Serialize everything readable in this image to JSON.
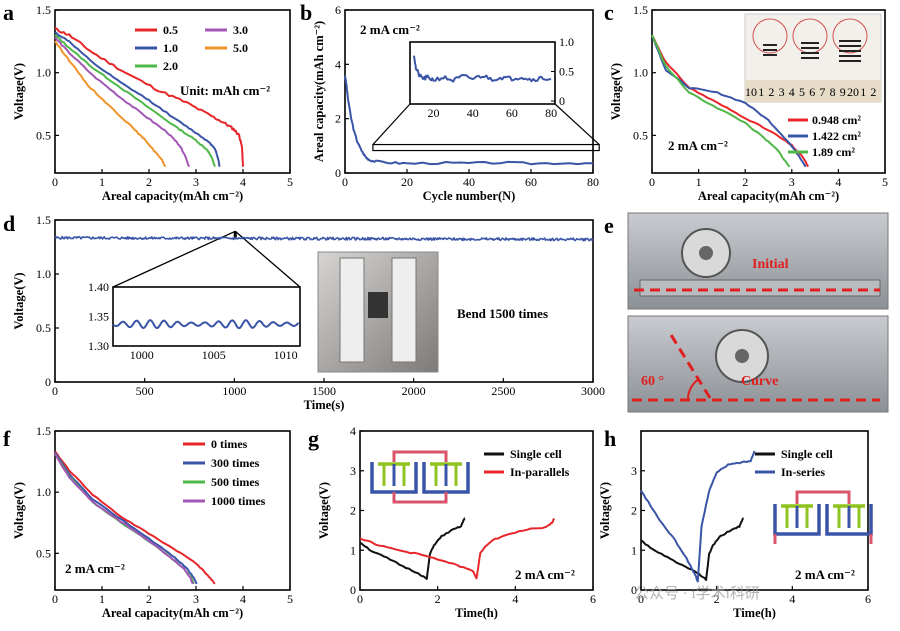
{
  "figure": {
    "panels": [
      "a",
      "b",
      "c",
      "d",
      "e",
      "f",
      "g",
      "h"
    ],
    "watermark": "公众号 · i学术i科研"
  },
  "colors": {
    "red": "#e8262a",
    "blue": "#3a55a8",
    "green": "#4db848",
    "purple": "#a256b5",
    "orange": "#f0942a",
    "black": "#111111",
    "dashed_red": "#e02020",
    "photo_bg": "#9aa0a6"
  },
  "chart_data": [
    {
      "panel": "a",
      "type": "line",
      "xlabel": "Areal capacity(mAh cm⁻²)",
      "ylabel": "Voltage(V)",
      "xlim": [
        0,
        5
      ],
      "ylim": [
        0.2,
        1.5
      ],
      "xticks": [
        0,
        1,
        2,
        3,
        4,
        5
      ],
      "yticks": [
        0.5,
        1.0,
        1.5
      ],
      "yticklabels": [
        "0.5",
        "1.0",
        "1.5"
      ],
      "legend_items": [
        "0.5",
        "1.0",
        "2.0",
        "3.0",
        "5.0"
      ],
      "annotation": "Unit: mAh cm⁻²",
      "series": [
        {
          "name": "0.5",
          "color": "red",
          "x": [
            0,
            0.3,
            0.8,
            1.5,
            2.2,
            2.8,
            3.3,
            3.6,
            3.8,
            3.92,
            3.98,
            4.0
          ],
          "y": [
            1.35,
            1.3,
            1.16,
            1.0,
            0.86,
            0.76,
            0.66,
            0.6,
            0.55,
            0.5,
            0.4,
            0.25
          ]
        },
        {
          "name": "1.0",
          "color": "blue",
          "x": [
            0,
            0.3,
            0.8,
            1.4,
            2.0,
            2.6,
            3.0,
            3.3,
            3.42,
            3.48,
            3.5
          ],
          "y": [
            1.32,
            1.25,
            1.08,
            0.92,
            0.78,
            0.62,
            0.52,
            0.44,
            0.38,
            0.3,
            0.25
          ]
        },
        {
          "name": "2.0",
          "color": "green",
          "x": [
            0,
            0.3,
            0.8,
            1.4,
            2.0,
            2.6,
            3.0,
            3.25,
            3.35,
            3.4
          ],
          "y": [
            1.3,
            1.2,
            1.04,
            0.88,
            0.72,
            0.56,
            0.46,
            0.38,
            0.31,
            0.25
          ]
        },
        {
          "name": "3.0",
          "color": "purple",
          "x": [
            0,
            0.3,
            0.8,
            1.4,
            1.9,
            2.4,
            2.65,
            2.78,
            2.85
          ],
          "y": [
            1.28,
            1.16,
            0.98,
            0.8,
            0.66,
            0.52,
            0.42,
            0.33,
            0.25
          ]
        },
        {
          "name": "5.0",
          "color": "orange",
          "x": [
            0,
            0.3,
            0.7,
            1.2,
            1.6,
            1.95,
            2.15,
            2.28,
            2.35
          ],
          "y": [
            1.25,
            1.1,
            0.9,
            0.72,
            0.58,
            0.45,
            0.36,
            0.3,
            0.25
          ]
        }
      ]
    },
    {
      "panel": "b",
      "type": "line",
      "xlabel": "Cycle number(N)",
      "ylabel": "Areal capacity(mAh cm⁻²)",
      "xlim": [
        0,
        80
      ],
      "ylim": [
        0,
        6
      ],
      "xticks": [
        0,
        20,
        40,
        60,
        80
      ],
      "yticks": [
        0,
        2,
        4,
        6
      ],
      "annotation": "2 mA cm⁻²",
      "inset": {
        "xlim": [
          8,
          82
        ],
        "ylim": [
          -0.05,
          1.0
        ],
        "xticks": [
          20,
          40,
          60,
          80
        ],
        "yticks": [
          0,
          0.5,
          1.0
        ],
        "yticklabels": [
          "0",
          "0.5",
          "1.0"
        ],
        "x": [
          10,
          11,
          13,
          15,
          17,
          20,
          25,
          30,
          35,
          40,
          45,
          50,
          55,
          60,
          65,
          70,
          75,
          80
        ],
        "y": [
          0.8,
          0.55,
          0.42,
          0.38,
          0.4,
          0.36,
          0.4,
          0.35,
          0.42,
          0.38,
          0.43,
          0.37,
          0.4,
          0.38,
          0.41,
          0.36,
          0.39,
          0.37
        ]
      },
      "series": [
        {
          "name": "",
          "color": "blue",
          "x": [
            0,
            0.5,
            1,
            2,
            3,
            4,
            5,
            6,
            7,
            8,
            10,
            15,
            20,
            30,
            40,
            50,
            60,
            70,
            80
          ],
          "y": [
            3.6,
            3.2,
            2.7,
            2.0,
            1.5,
            1.15,
            0.9,
            0.7,
            0.55,
            0.48,
            0.42,
            0.38,
            0.35,
            0.37,
            0.36,
            0.38,
            0.35,
            0.37,
            0.36
          ]
        }
      ]
    },
    {
      "panel": "c",
      "type": "line",
      "xlabel": "Areal capacity(mAh cm⁻²)",
      "ylabel": "Voltage(V)",
      "xlim": [
        0,
        5
      ],
      "ylim": [
        0.2,
        1.5
      ],
      "xticks": [
        0,
        1,
        2,
        3,
        4,
        5
      ],
      "yticks": [
        0.5,
        1.0,
        1.5
      ],
      "yticklabels": [
        "0.5",
        "1.0",
        "1.5"
      ],
      "annotation": "2 mA cm⁻²",
      "legend_items": [
        "0.948 cm²",
        "1.422 cm²",
        "1.89 cm²"
      ],
      "series": [
        {
          "name": "0.948 cm²",
          "color": "red",
          "x": [
            0,
            0.3,
            0.8,
            1.4,
            2.0,
            2.6,
            3.0,
            3.25,
            3.35
          ],
          "y": [
            1.3,
            1.08,
            0.88,
            0.76,
            0.64,
            0.52,
            0.42,
            0.32,
            0.25
          ]
        },
        {
          "name": "1.422 cm²",
          "color": "blue",
          "x": [
            0,
            0.3,
            0.8,
            1.4,
            2.0,
            2.5,
            2.9,
            3.15,
            3.3
          ],
          "y": [
            1.3,
            1.02,
            0.88,
            0.84,
            0.76,
            0.62,
            0.46,
            0.34,
            0.25
          ]
        },
        {
          "name": "1.89 cm²",
          "color": "green",
          "x": [
            0,
            0.3,
            0.8,
            1.4,
            2.0,
            2.4,
            2.7,
            2.85,
            2.95
          ],
          "y": [
            1.3,
            1.05,
            0.84,
            0.72,
            0.6,
            0.48,
            0.38,
            0.3,
            0.25
          ]
        }
      ],
      "photo": {
        "ruler_numbers": [
          "10",
          "1",
          "2",
          "3",
          "4",
          "5",
          "6",
          "7",
          "8",
          "9",
          "20",
          "1",
          "2"
        ]
      }
    },
    {
      "panel": "d",
      "type": "line",
      "xlabel": "Time(s)",
      "ylabel": "Voltage(V)",
      "xlim": [
        0,
        3000
      ],
      "ylim": [
        0,
        1.5
      ],
      "xticks": [
        0,
        500,
        1000,
        1500,
        2000,
        2500,
        3000
      ],
      "yticks": [
        0,
        0.5,
        1.0,
        1.5
      ],
      "yticklabels": [
        "0",
        "0.5",
        "1.0",
        "1.5"
      ],
      "annotation": "Bend 1500 times",
      "series": [
        {
          "name": "",
          "color": "blue",
          "x": [
            0,
            3000
          ],
          "y": [
            1.335,
            1.32
          ],
          "noise": 0.012
        }
      ],
      "inset": {
        "xlim": [
          998,
          1011
        ],
        "ylim": [
          1.3,
          1.4
        ],
        "xticks": [
          1000,
          1005,
          1010
        ],
        "yticks": [
          1.3,
          1.35,
          1.4
        ],
        "yticklabels": [
          "1.30",
          "1.35",
          "1.40"
        ],
        "mean": 1.337,
        "amplitude": 0.007,
        "period": 0.95
      }
    },
    {
      "panel": "e",
      "type": "table",
      "labels": [
        "Initial",
        "Curve"
      ],
      "angle_label": "60 °"
    },
    {
      "panel": "f",
      "type": "line",
      "xlabel": "Areal capacity(mAh cm⁻²)",
      "ylabel": "Voltage(V)",
      "xlim": [
        0,
        5
      ],
      "ylim": [
        0.2,
        1.5
      ],
      "xticks": [
        0,
        1,
        2,
        3,
        4,
        5
      ],
      "yticks": [
        0.5,
        1.0,
        1.5
      ],
      "yticklabels": [
        "0.5",
        "1.0",
        "1.5"
      ],
      "annotation": "2 mA cm⁻²",
      "legend_items": [
        "0 times",
        "300 times",
        "500 times",
        "1000 times"
      ],
      "series": [
        {
          "name": "0 times",
          "color": "red",
          "x": [
            0,
            0.3,
            0.8,
            1.4,
            2.0,
            2.6,
            3.0,
            3.25,
            3.4
          ],
          "y": [
            1.33,
            1.18,
            0.98,
            0.8,
            0.66,
            0.52,
            0.42,
            0.32,
            0.25
          ]
        },
        {
          "name": "300 times",
          "color": "blue",
          "x": [
            0,
            0.3,
            0.8,
            1.4,
            2.0,
            2.5,
            2.8,
            2.95,
            3.02
          ],
          "y": [
            1.32,
            1.15,
            0.94,
            0.78,
            0.62,
            0.48,
            0.38,
            0.3,
            0.25
          ]
        },
        {
          "name": "500 times",
          "color": "green",
          "x": [
            0,
            0.3,
            0.8,
            1.4,
            2.0,
            2.45,
            2.75,
            2.9,
            2.95
          ],
          "y": [
            1.31,
            1.13,
            0.92,
            0.75,
            0.6,
            0.47,
            0.37,
            0.3,
            0.25
          ]
        },
        {
          "name": "1000 times",
          "color": "purple",
          "x": [
            0,
            0.3,
            0.8,
            1.4,
            2.0,
            2.45,
            2.75,
            2.88,
            2.93
          ],
          "y": [
            1.31,
            1.12,
            0.92,
            0.76,
            0.6,
            0.47,
            0.37,
            0.3,
            0.25
          ]
        }
      ]
    },
    {
      "panel": "g",
      "type": "line",
      "xlabel": "Time(h)",
      "ylabel": "Voltage(V)",
      "xlim": [
        0,
        6
      ],
      "ylim": [
        0,
        4
      ],
      "xticks": [
        0,
        2,
        4,
        6
      ],
      "yticks": [
        0,
        1,
        2,
        3,
        4
      ],
      "annotation": "2 mA cm⁻²",
      "legend_items": [
        "Single cell",
        "In-parallels"
      ],
      "series": [
        {
          "name": "Single cell",
          "color": "black",
          "x": [
            0,
            0.3,
            0.7,
            1.1,
            1.5,
            1.72,
            1.8,
            1.9,
            2.1,
            2.4,
            2.6,
            2.68,
            2.7
          ],
          "y": [
            1.2,
            0.98,
            0.8,
            0.6,
            0.42,
            0.28,
            0.9,
            1.12,
            1.35,
            1.52,
            1.6,
            1.78,
            1.8
          ]
        },
        {
          "name": "In-parallels",
          "color": "red",
          "x": [
            0,
            0.5,
            1.0,
            1.5,
            2.0,
            2.5,
            2.9,
            3.0,
            3.1,
            3.4,
            3.8,
            4.3,
            4.8,
            4.95,
            5.0
          ],
          "y": [
            1.3,
            1.12,
            1.0,
            0.9,
            0.78,
            0.62,
            0.48,
            0.3,
            0.95,
            1.25,
            1.4,
            1.52,
            1.58,
            1.7,
            1.8
          ]
        }
      ]
    },
    {
      "panel": "h",
      "type": "line",
      "xlabel": "Time(h)",
      "ylabel": "Voltage(V)",
      "xlim": [
        0,
        6
      ],
      "ylim": [
        0,
        4
      ],
      "xticks": [
        0,
        2,
        4,
        6
      ],
      "yticks": [
        0,
        1,
        2,
        3
      ],
      "annotation": "2 mA cm⁻²",
      "legend_items": [
        "Single cell",
        "In-series"
      ],
      "series": [
        {
          "name": "Single cell",
          "color": "black",
          "x": [
            0,
            0.3,
            0.7,
            1.1,
            1.5,
            1.72,
            1.8,
            1.9,
            2.1,
            2.4,
            2.6,
            2.68,
            2.7
          ],
          "y": [
            1.25,
            1.02,
            0.82,
            0.62,
            0.42,
            0.26,
            0.9,
            1.12,
            1.35,
            1.52,
            1.6,
            1.76,
            1.8
          ]
        },
        {
          "name": "In-series",
          "color": "blue",
          "x": [
            0,
            0.2,
            0.5,
            0.9,
            1.2,
            1.45,
            1.5,
            1.6,
            1.8,
            2.0,
            2.3,
            2.6,
            2.9,
            3.0
          ],
          "y": [
            2.5,
            2.2,
            1.75,
            1.25,
            0.8,
            0.35,
            0.2,
            1.6,
            2.5,
            2.95,
            3.15,
            3.2,
            3.25,
            3.5
          ]
        }
      ]
    }
  ]
}
